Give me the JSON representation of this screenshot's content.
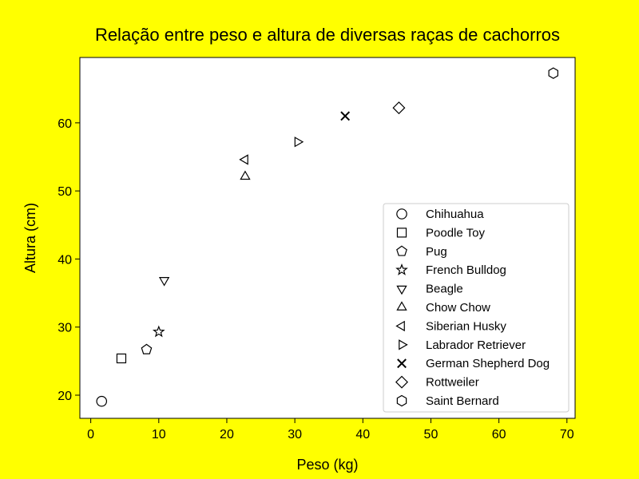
{
  "chart_data": {
    "type": "scatter",
    "title": "Relação entre peso e altura de diversas raças de cachorros",
    "xlabel": "Peso (kg)",
    "ylabel": "Altura (cm)",
    "xlim": [
      -1.6,
      71.2
    ],
    "ylim": [
      16.6,
      69.6
    ],
    "xticks": [
      0,
      10,
      20,
      30,
      40,
      50,
      60,
      70
    ],
    "yticks": [
      20,
      30,
      40,
      50,
      60
    ],
    "grid": false,
    "legend_position": "lower-right",
    "background_color": "#ffff00",
    "plot_background_color": "#ffffff",
    "marker_color": "#000000",
    "series": [
      {
        "name": "Chihuahua",
        "marker": "circle",
        "x": 1.6,
        "y": 19.1
      },
      {
        "name": "Poodle Toy",
        "marker": "square",
        "x": 4.5,
        "y": 25.4
      },
      {
        "name": "Pug",
        "marker": "pentagon",
        "x": 8.2,
        "y": 26.7
      },
      {
        "name": "French Bulldog",
        "marker": "star",
        "x": 10.0,
        "y": 29.3
      },
      {
        "name": "Beagle",
        "marker": "triangle-down",
        "x": 10.8,
        "y": 36.9
      },
      {
        "name": "Chow Chow",
        "marker": "triangle-up",
        "x": 22.7,
        "y": 52.1
      },
      {
        "name": "Siberian Husky",
        "marker": "triangle-left",
        "x": 22.7,
        "y": 54.6
      },
      {
        "name": "Labrador Retriever",
        "marker": "triangle-right",
        "x": 30.4,
        "y": 57.2
      },
      {
        "name": "German Shepherd Dog",
        "marker": "x",
        "x": 37.4,
        "y": 61.0
      },
      {
        "name": "Rottweiler",
        "marker": "diamond",
        "x": 45.3,
        "y": 62.2
      },
      {
        "name": "Saint Bernard",
        "marker": "hexagon",
        "x": 68.0,
        "y": 67.3
      }
    ]
  }
}
